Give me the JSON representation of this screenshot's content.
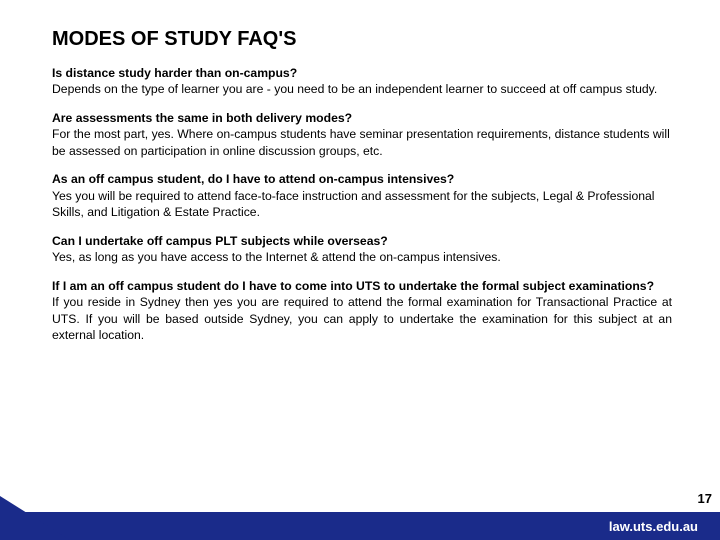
{
  "title": "MODES OF STUDY FAQ'S",
  "faqs": [
    {
      "q": "Is distance study harder than on-campus?",
      "a": "Depends on the type of learner you are - you need to be an independent learner to succeed at off campus study."
    },
    {
      "q": "Are assessments the same in both delivery modes?",
      "a": "For the most part, yes. Where on-campus students have seminar presentation requirements, distance students will be assessed on participation in online discussion groups, etc."
    },
    {
      "q": "As an off campus student, do I have to attend on-campus intensives?",
      "a": "Yes you will be required to attend face-to-face instruction and assessment for the subjects, Legal & Professional Skills, and Litigation & Estate Practice."
    },
    {
      "q": "Can I undertake off campus PLT subjects while overseas?",
      "a": "Yes, as long as you have access to the Internet & attend the on-campus intensives."
    },
    {
      "q": "If I am an off campus student do I have to come into UTS to undertake the formal subject examinations?",
      "a": "If you reside in Sydney then yes you are required to attend the formal examination for Transactional Practice at UTS.  If you will be based outside Sydney, you can apply to undertake the examination for this subject at an external location."
    }
  ],
  "page_number": "17",
  "footer_url": "law.uts.edu.au",
  "colors": {
    "brand_blue": "#1a2b8a",
    "text": "#000000",
    "bg": "#ffffff"
  }
}
